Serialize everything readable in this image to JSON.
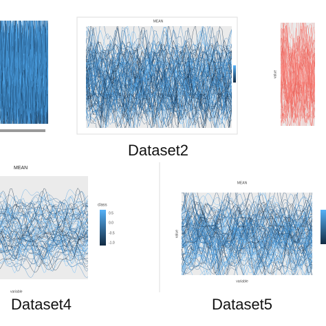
{
  "top_row": {
    "center_title": "MEAN",
    "caption": "Dataset2"
  },
  "top_right": {
    "y_axis_label": "value"
  },
  "bottom_left": {
    "title": "MEAN",
    "legend_title": "class",
    "legend_labels": [
      "0.5",
      "0.0",
      "-0.5",
      "-1.0"
    ],
    "x_axis_label": "variable",
    "caption": "Dataset4"
  },
  "bottom_right": {
    "title": "MEAN",
    "y_axis_label": "value",
    "x_axis_label": "variable",
    "caption": "Dataset5"
  }
}
